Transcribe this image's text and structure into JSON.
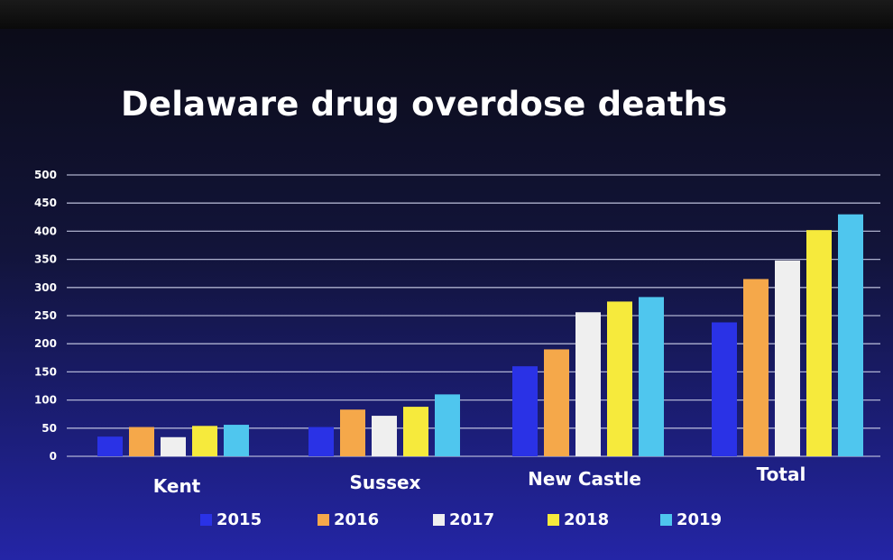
{
  "chart_data": {
    "type": "bar",
    "title": "Delaware drug overdose deaths",
    "xlabel": "",
    "ylabel": "",
    "categories": [
      "Kent",
      "Sussex",
      "New Castle",
      "Total"
    ],
    "series": [
      {
        "name": "2015",
        "color": "#2a32e6",
        "values": [
          35,
          52,
          160,
          238
        ]
      },
      {
        "name": "2016",
        "color": "#f5a84a",
        "values": [
          52,
          83,
          190,
          315
        ]
      },
      {
        "name": "2017",
        "color": "#efefef",
        "values": [
          34,
          72,
          256,
          348
        ]
      },
      {
        "name": "2018",
        "color": "#f6ea3c",
        "values": [
          54,
          88,
          275,
          402
        ]
      },
      {
        "name": "2019",
        "color": "#4fc6ee",
        "values": [
          56,
          110,
          283,
          430
        ]
      }
    ],
    "yticks": [
      "0",
      "50",
      "100",
      "150",
      "200",
      "250",
      "300",
      "350",
      "400",
      "450",
      "500"
    ],
    "ylim": [
      0,
      500
    ],
    "grid": true,
    "legend_position": "bottom"
  },
  "legend": {
    "items": [
      "2015",
      "2016",
      "2017",
      "2018",
      "2019"
    ]
  }
}
